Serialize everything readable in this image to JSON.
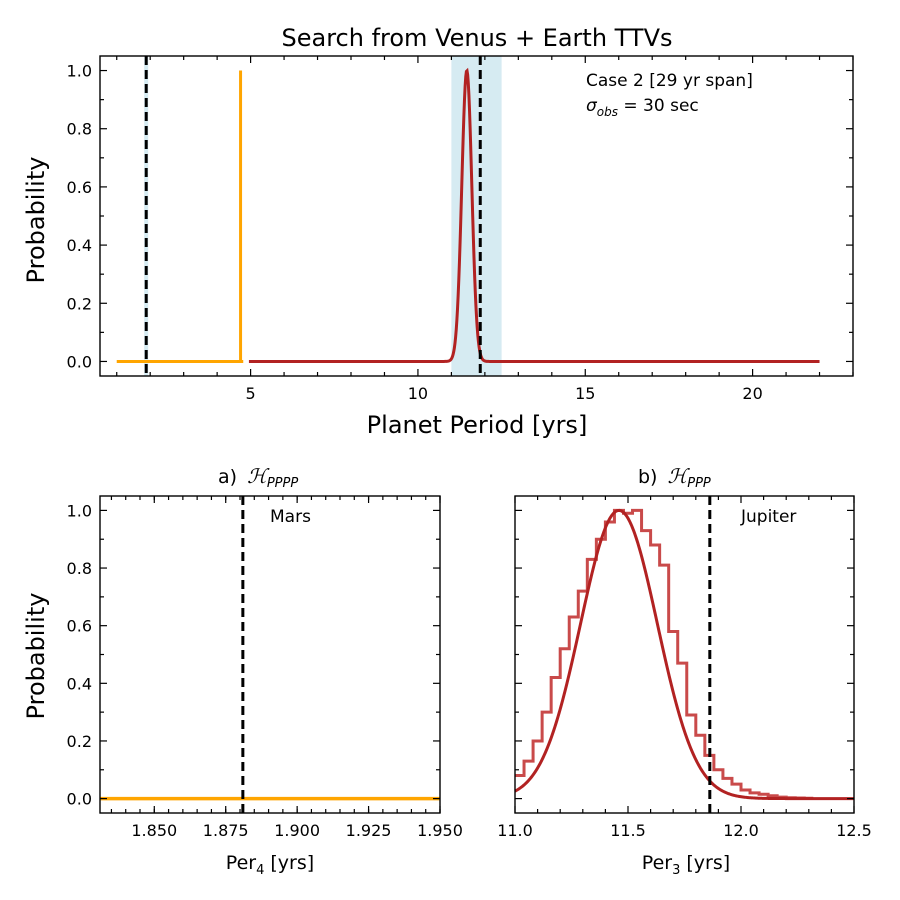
{
  "chart_data": [
    {
      "type": "line",
      "title": "Search from Venus + Earth TTVs",
      "xlabel": "Planet Period [yrs]",
      "ylabel": "Probability",
      "xlim": [
        0.5,
        23.0
      ],
      "ylim": [
        -0.05,
        1.05
      ],
      "x_ticks": [
        5,
        10,
        15,
        20
      ],
      "y_ticks": [
        0.0,
        0.2,
        0.4,
        0.6,
        0.8,
        1.0
      ],
      "annotation_lines": [
        "Case 2 [29 yr span]",
        "σobs = 30 sec"
      ],
      "shaded_regions": [
        {
          "from": 1.82,
          "to": 1.94,
          "color": "#add8e6"
        },
        {
          "from": 11.0,
          "to": 12.5,
          "color": "#add8e6"
        }
      ],
      "reference_lines": [
        1.881,
        11.862
      ],
      "series": [
        {
          "color": "#ffa500",
          "points": [
            [
              1.0,
              0
            ],
            [
              4.7,
              0
            ],
            [
              4.7,
              1.0
            ],
            [
              4.7,
              0
            ],
            [
              4.78,
              0
            ]
          ]
        },
        {
          "color": "#b22222",
          "peak_x": 11.46,
          "width": 0.15,
          "x_range": [
            4.95,
            22.0
          ]
        }
      ]
    },
    {
      "type": "line",
      "title": "a)",
      "title_math": "ℋPPPP",
      "xlabel": "Per4 [yrs]",
      "ylabel": "Probability",
      "xlim": [
        1.831,
        1.95
      ],
      "ylim": [
        -0.05,
        1.05
      ],
      "x_ticks": [
        "1.850",
        "1.875",
        "1.900",
        "1.925",
        "1.950"
      ],
      "y_ticks": [
        0.0,
        0.2,
        0.4,
        0.6,
        0.8,
        1.0
      ],
      "reference_line": {
        "x": 1.881,
        "label": "Mars"
      },
      "series": [
        {
          "color": "#ffa500",
          "values": [
            [
              1.831,
              0.0
            ],
            [
              1.95,
              0.0
            ]
          ]
        }
      ]
    },
    {
      "type": "line",
      "title": "b)",
      "title_math": "ℋPPP",
      "xlabel": "Per3 [yrs]",
      "xlim": [
        11.0,
        12.5
      ],
      "ylim": [
        -0.05,
        1.05
      ],
      "x_ticks": [
        "11.0",
        "11.5",
        "12.0",
        "12.5"
      ],
      "reference_line": {
        "x": 11.862,
        "label": "Jupiter"
      },
      "histogram": {
        "color": "#c94a4a",
        "bin_edges": [
          11.0,
          11.04,
          11.08,
          11.12,
          11.16,
          11.2,
          11.24,
          11.28,
          11.32,
          11.36,
          11.4,
          11.44,
          11.48,
          11.52,
          11.56,
          11.6,
          11.64,
          11.68,
          11.72,
          11.76,
          11.8,
          11.84,
          11.88,
          11.92,
          11.96,
          12.0,
          12.04,
          12.08,
          12.12,
          12.16,
          12.2,
          12.24,
          12.28,
          12.32
        ],
        "values": [
          0.08,
          0.13,
          0.2,
          0.3,
          0.42,
          0.52,
          0.63,
          0.72,
          0.83,
          0.9,
          0.96,
          1.0,
          0.99,
          1.0,
          0.93,
          0.88,
          0.81,
          0.58,
          0.47,
          0.29,
          0.22,
          0.15,
          0.1,
          0.07,
          0.05,
          0.03,
          0.02,
          0.015,
          0.01,
          0.005,
          0.003,
          0.002,
          0.001
        ]
      },
      "series": [
        {
          "color": "#b22222",
          "mean": 11.46,
          "sigma": 0.17
        }
      ]
    }
  ]
}
